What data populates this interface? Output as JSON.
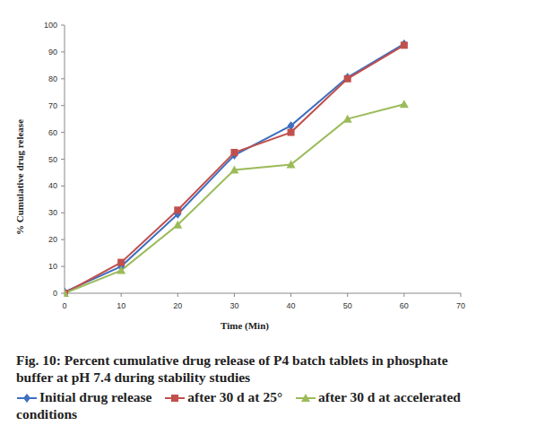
{
  "chart_data": {
    "type": "line",
    "title": "Fig. 10: Percent cumulative drug release of P4 batch tablets in phosphate buffer at pH 7.4 during stability studies",
    "x_label": "Time (Min)",
    "y_label": "% Cumulative drug release",
    "x": [
      0,
      10,
      20,
      30,
      40,
      50,
      60
    ],
    "series": [
      {
        "name": "Initial drug release",
        "color": "#3e6fc0",
        "marker": "diamond",
        "values": [
          0.5,
          10,
          29.5,
          51.5,
          62.5,
          80.5,
          93
        ]
      },
      {
        "name": "after 30 d at 25°",
        "color": "#c0504d",
        "marker": "square",
        "values": [
          0,
          11.5,
          31,
          52.5,
          60,
          80,
          92.5
        ]
      },
      {
        "name": "after 30 d at accelerated conditions",
        "color": "#9bbb59",
        "marker": "triangle",
        "values": [
          0,
          8.5,
          25.5,
          46,
          48,
          65,
          70.5
        ]
      }
    ],
    "xlim": [
      0,
      70
    ],
    "xticks": [
      0,
      10,
      20,
      30,
      40,
      50,
      60,
      70
    ],
    "ylim": [
      0,
      100
    ],
    "yticks": [
      0,
      10,
      20,
      30,
      40,
      50,
      60,
      70,
      80,
      90,
      100
    ],
    "grid": false,
    "legend": "bottom"
  }
}
